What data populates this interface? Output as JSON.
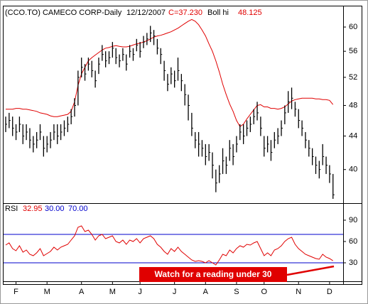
{
  "chart_data": [
    {
      "type": "ohlc",
      "title": "(CCO.TO) CAMECO CORP-Daily",
      "date": "12/12/2007",
      "close_label": "C=37.230",
      "ylog": true,
      "ylim": [
        36.5,
        63.5
      ],
      "yticks": [
        40,
        44,
        48,
        52,
        56,
        60
      ],
      "color": "#000000",
      "categories": [
        null,
        null,
        null,
        "F",
        null,
        null,
        null,
        null,
        null,
        null,
        null,
        null,
        "M",
        null,
        null,
        null,
        null,
        null,
        null,
        null,
        null,
        null,
        "A",
        null,
        null,
        null,
        null,
        null,
        null,
        null,
        null,
        "M",
        null,
        null,
        null,
        null,
        null,
        null,
        null,
        "J",
        null,
        null,
        null,
        null,
        null,
        null,
        null,
        null,
        null,
        "J",
        null,
        null,
        null,
        null,
        null,
        null,
        null,
        null,
        "A",
        null,
        null,
        null,
        null,
        null,
        null,
        null,
        null,
        "S",
        null,
        null,
        null,
        null,
        null,
        null,
        null,
        "O",
        null,
        null,
        null,
        null,
        null,
        null,
        null,
        null,
        null,
        "N",
        null,
        null,
        null,
        null,
        null,
        null,
        null,
        null,
        "D",
        null
      ],
      "high": [
        46.5,
        47,
        46.5,
        45.5,
        46.5,
        45.5,
        45.5,
        45,
        44,
        44.5,
        45.5,
        44,
        44,
        44.5,
        45.5,
        45.5,
        45.5,
        46,
        46.5,
        47.5,
        49,
        53,
        55,
        54,
        55,
        54.5,
        53,
        55,
        57,
        56,
        56,
        57.5,
        56.5,
        55.5,
        56.5,
        55.5,
        57,
        56.5,
        58,
        57.5,
        58.5,
        59,
        60.2,
        59.5,
        58,
        56.5,
        54.5,
        52.5,
        53.5,
        53,
        55,
        52.5,
        51,
        49.5,
        47,
        44.5,
        44.5,
        43.5,
        43,
        43,
        42,
        40,
        40.5,
        42.5,
        41.5,
        43.5,
        43,
        44,
        45.5,
        45.5,
        46,
        46.5,
        47.5,
        48.5,
        46.5,
        44,
        44,
        43.5,
        44.5,
        45,
        46,
        48,
        50,
        50.5,
        48.5,
        47.5,
        46,
        44.5,
        43.5,
        42.5,
        41.5,
        41,
        43,
        41.5,
        40.5,
        39.5
      ],
      "low": [
        44.5,
        45,
        44,
        43.5,
        44.5,
        43,
        43.5,
        42.5,
        42,
        42.5,
        43.5,
        41.5,
        42,
        42.5,
        43.5,
        43,
        43.5,
        44,
        44.5,
        45.5,
        46.5,
        48,
        52,
        51.5,
        53,
        52,
        50.5,
        52.5,
        54.5,
        53.5,
        54,
        55,
        54,
        53.5,
        54.5,
        53,
        55,
        54.5,
        56,
        55,
        56.5,
        57,
        57.5,
        57,
        55.5,
        54,
        51.5,
        50,
        51,
        50.5,
        51.5,
        50,
        48,
        46,
        44,
        42.5,
        41.5,
        41.5,
        40.5,
        41,
        39,
        37.5,
        38.5,
        39.5,
        39.5,
        41,
        40.5,
        42,
        43.5,
        43,
        44,
        44.5,
        45.5,
        46,
        44,
        41.5,
        42,
        41,
        42.5,
        43,
        44,
        45.5,
        47,
        47.5,
        46.5,
        45,
        44,
        42.5,
        41.5,
        40.5,
        39.5,
        39,
        40.5,
        39.5,
        38.5,
        36.8
      ],
      "close": [
        45.5,
        46,
        45,
        44.5,
        45.5,
        44,
        44.5,
        43.5,
        43,
        43.5,
        44.5,
        42.5,
        43,
        43.5,
        44.5,
        44,
        44.5,
        45,
        45.5,
        46.5,
        48,
        52,
        53.5,
        52.5,
        54,
        53,
        51.5,
        54,
        55.5,
        54.5,
        55,
        56.5,
        55,
        54.5,
        55.5,
        54,
        56,
        55.5,
        57,
        56,
        57.5,
        58,
        59,
        58.5,
        56.5,
        55.5,
        53,
        51,
        52.5,
        51.5,
        53,
        51.5,
        49.5,
        48,
        45,
        43.5,
        43,
        42.5,
        41.5,
        42,
        40.5,
        38.5,
        39.5,
        41,
        40.5,
        42.5,
        41.5,
        43,
        44.5,
        44,
        45,
        45.5,
        46.5,
        47,
        45,
        42.5,
        43,
        42,
        43.5,
        44,
        45,
        47,
        48.5,
        49,
        47.5,
        46,
        45,
        43.5,
        42.5,
        41.5,
        40.5,
        40,
        41.5,
        40.5,
        39.5,
        37.23
      ],
      "series": [
        {
          "name": "Boll hi",
          "color": "#e00000",
          "current_label": "48.125",
          "values": [
            47.5,
            47.5,
            47.5,
            47.6,
            47.6,
            47.5,
            47.5,
            47.4,
            47.3,
            47.2,
            47,
            46.9,
            46.8,
            46.6,
            46.5,
            46.5,
            46.6,
            46.7,
            46.8,
            47.2,
            48.5,
            50.8,
            52.5,
            53.5,
            54.5,
            55,
            55.4,
            55.8,
            56.2,
            56.5,
            56.6,
            56.8,
            56.9,
            56.8,
            56.7,
            56.7,
            56.8,
            57,
            57.2,
            57.3,
            57.5,
            57.7,
            58,
            58.3,
            58.5,
            58.6,
            58.8,
            59,
            59.2,
            59.5,
            59.8,
            60.2,
            60.6,
            61,
            61.3,
            61,
            60.4,
            59.5,
            58.5,
            57.2,
            56,
            54.5,
            52.8,
            51,
            49.5,
            48.2,
            47.2,
            46,
            45.2,
            45.5,
            46.2,
            46.8,
            47.4,
            48,
            48.1,
            47.8,
            47.8,
            47.6,
            47.6,
            47.5,
            47.6,
            47.8,
            48.2,
            48.6,
            48.8,
            48.9,
            49,
            49,
            49,
            49,
            48.9,
            48.9,
            48.8,
            48.8,
            48.7,
            48.125
          ]
        }
      ]
    },
    {
      "type": "line",
      "ylim": [
        5,
        112
      ],
      "yticks": [
        30,
        60,
        90
      ],
      "annotation": "Watch for a reading under 30",
      "levels": [
        {
          "value": 30,
          "label": "30.00"
        },
        {
          "value": 70,
          "label": "70.00"
        }
      ],
      "level_color": "#0000cc",
      "series": [
        {
          "name": "RSI",
          "color": "#e00000",
          "current_label": "32.95",
          "values": [
            55,
            58,
            50,
            47,
            54,
            45,
            48,
            42,
            40,
            44,
            50,
            40,
            43,
            46,
            52,
            48,
            52,
            54,
            56,
            62,
            68,
            80,
            82,
            74,
            76,
            70,
            62,
            68,
            70,
            64,
            66,
            68,
            60,
            58,
            62,
            56,
            62,
            60,
            64,
            58,
            64,
            66,
            68,
            64,
            56,
            52,
            46,
            42,
            50,
            46,
            52,
            46,
            42,
            38,
            34,
            32,
            33,
            32,
            30,
            33,
            30,
            27,
            34,
            42,
            40,
            48,
            44,
            50,
            54,
            52,
            56,
            55,
            58,
            60,
            50,
            40,
            44,
            40,
            48,
            50,
            54,
            60,
            64,
            66,
            56,
            50,
            46,
            42,
            40,
            38,
            36,
            35,
            42,
            38,
            36,
            32.95
          ]
        }
      ]
    }
  ]
}
